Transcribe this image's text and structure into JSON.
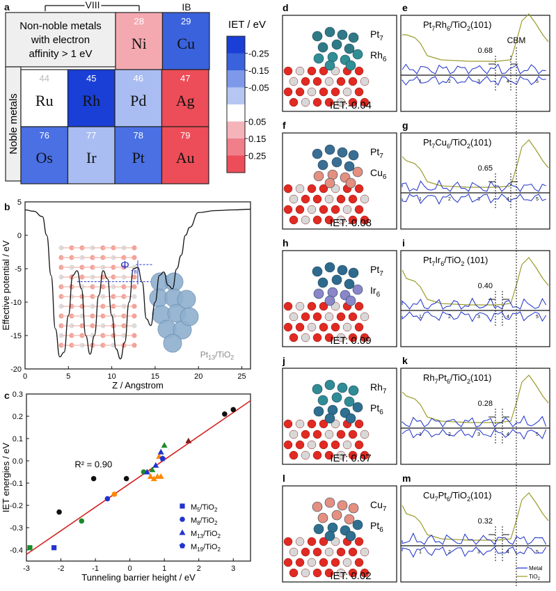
{
  "panel_letters": {
    "a": "a",
    "b": "b",
    "c": "c",
    "d": "d",
    "e": "e",
    "f": "f",
    "g": "g",
    "h": "h",
    "i": "i",
    "j": "j",
    "k": "k",
    "l": "l",
    "m": "m"
  },
  "panel_a": {
    "group_viii": "VIII",
    "group_ib": "IB",
    "nonnoble_text": [
      "Non-noble metals",
      "with electron",
      "affinity > 1 eV"
    ],
    "noble_label": "Noble metals",
    "cells": [
      {
        "num": "28",
        "sym": "Ni",
        "color": "#f4a9b1",
        "numcolor": "#ffffff"
      },
      {
        "num": "29",
        "sym": "Cu",
        "color": "#3a62dd",
        "numcolor": "#ffffff"
      },
      {
        "num": "44",
        "sym": "Ru",
        "color": "#ffffff",
        "numcolor": "#bbbbbb"
      },
      {
        "num": "45",
        "sym": "Rh",
        "color": "#1a3fd6",
        "numcolor": "#ffffff"
      },
      {
        "num": "46",
        "sym": "Pd",
        "color": "#a9bdf2",
        "numcolor": "#ffffff"
      },
      {
        "num": "47",
        "sym": "Ag",
        "color": "#ec4d58",
        "numcolor": "#ffffff"
      },
      {
        "num": "76",
        "sym": "Os",
        "color": "#4a70e3",
        "numcolor": "#ffffff"
      },
      {
        "num": "77",
        "sym": "Ir",
        "color": "#a9bdf2",
        "numcolor": "#ffffff"
      },
      {
        "num": "78",
        "sym": "Pt",
        "color": "#4a70e3",
        "numcolor": "#ffffff"
      },
      {
        "num": "79",
        "sym": "Au",
        "color": "#ec4d58",
        "numcolor": "#ffffff"
      }
    ],
    "colorbar": {
      "title": "IET / eV",
      "ticks": [
        "-0.25",
        "-0.15",
        "-0.05",
        "0.05",
        "0.15",
        "0.25"
      ],
      "colors": [
        "#1a3fd6",
        "#3a62dd",
        "#7e99ea",
        "#b6c6f3",
        "#ffffff",
        "#f5b3ba",
        "#f17f89",
        "#ec4d58"
      ]
    }
  },
  "chart_data": [
    {
      "type": "line",
      "panel": "b",
      "xlabel": "Z / Angstrom",
      "ylabel": "Effective potential / eV",
      "xlim": [
        0,
        26
      ],
      "ylim": [
        -20,
        5
      ],
      "xticks": [
        "0",
        "5",
        "10",
        "15",
        "20",
        "25"
      ],
      "yticks": [
        "5",
        "0",
        "-5",
        "-10",
        "-15",
        "-20"
      ],
      "x": [
        0,
        1,
        2,
        2.5,
        3,
        3.5,
        4,
        4.5,
        5,
        5.5,
        6,
        6.5,
        7,
        7.5,
        8,
        8.5,
        9,
        9.5,
        10,
        10.5,
        11,
        11.5,
        12,
        12.5,
        13,
        13.5,
        14,
        14.5,
        15,
        15.5,
        16,
        16.5,
        17,
        17.5,
        18,
        18.5,
        19,
        20,
        22,
        24,
        26
      ],
      "y": [
        3.8,
        3.6,
        2.8,
        0,
        -6,
        -14,
        -18.2,
        -17.5,
        -12,
        -6,
        -5.3,
        -8,
        -15,
        -17.8,
        -15,
        -9,
        -5.3,
        -6.5,
        -12,
        -17,
        -18.5,
        -16,
        -10,
        -5,
        -4.8,
        -7,
        -12.5,
        -13.5,
        -10,
        -6,
        -5.5,
        -7.5,
        -8,
        -5,
        -3,
        0,
        1.2,
        3.4,
        3.7,
        3.8,
        3.9
      ],
      "annotations": [
        "Φ",
        "TB",
        "Pt13/TiO2"
      ]
    },
    {
      "type": "scatter",
      "panel": "c",
      "xlabel": "Tunneling barrier height / eV",
      "ylabel": "IET energies / eV",
      "xlim": [
        -3,
        3.5
      ],
      "ylim": [
        -0.45,
        0.3
      ],
      "xticks": [
        "-3",
        "-2",
        "-1",
        "0",
        "1",
        "2",
        "3"
      ],
      "yticks": [
        "0.3",
        "0.2",
        "0.1",
        "0.0",
        "-0.1",
        "-0.2",
        "-0.3",
        "-0.4"
      ],
      "r2": "R² = 0.90",
      "fit": {
        "x": [
          -3,
          3.5
        ],
        "y": [
          -0.42,
          0.27
        ]
      },
      "legend": [
        "M5/TiO2",
        "M8/TiO2",
        "M13/TiO2",
        "M19/TiO2"
      ],
      "points": [
        {
          "x": -2.9,
          "y": -0.39,
          "shape": "square",
          "color": "#1a8a2a"
        },
        {
          "x": -2.2,
          "y": -0.39,
          "shape": "square",
          "color": "#2233cc"
        },
        {
          "x": -2.05,
          "y": -0.23,
          "shape": "circle",
          "color": "#111111"
        },
        {
          "x": -1.4,
          "y": -0.27,
          "shape": "circle",
          "color": "#1a8a2a"
        },
        {
          "x": -1.05,
          "y": -0.08,
          "shape": "circle",
          "color": "#111111"
        },
        {
          "x": -0.65,
          "y": -0.17,
          "shape": "circle",
          "color": "#2233cc"
        },
        {
          "x": -0.45,
          "y": -0.15,
          "shape": "circle",
          "color": "#ff8800"
        },
        {
          "x": -0.1,
          "y": -0.08,
          "shape": "circle",
          "color": "#111111"
        },
        {
          "x": 0.4,
          "y": -0.05,
          "shape": "circle",
          "color": "#1a8a2a"
        },
        {
          "x": 0.5,
          "y": -0.05,
          "shape": "triangle",
          "color": "#2233cc"
        },
        {
          "x": 0.6,
          "y": -0.07,
          "shape": "triangle",
          "color": "#ff8800"
        },
        {
          "x": 0.65,
          "y": -0.04,
          "shape": "triangle",
          "color": "#1a8a2a"
        },
        {
          "x": 0.7,
          "y": -0.08,
          "shape": "triangle",
          "color": "#ff8800"
        },
        {
          "x": 0.75,
          "y": -0.02,
          "shape": "triangle",
          "color": "#2233cc"
        },
        {
          "x": 0.8,
          "y": -0.07,
          "shape": "triangle",
          "color": "#ff8800"
        },
        {
          "x": 0.85,
          "y": 0.02,
          "shape": "triangle",
          "color": "#ff8800"
        },
        {
          "x": 0.9,
          "y": -0.07,
          "shape": "triangle",
          "color": "#ff8800"
        },
        {
          "x": 0.9,
          "y": 0.04,
          "shape": "triangle",
          "color": "#2233cc"
        },
        {
          "x": 0.95,
          "y": 0.01,
          "shape": "pentagon",
          "color": "#2233cc"
        },
        {
          "x": 1.0,
          "y": 0.07,
          "shape": "triangle",
          "color": "#1a8a2a"
        },
        {
          "x": 1.7,
          "y": 0.09,
          "shape": "triangle",
          "color": "#8b1a1a"
        },
        {
          "x": 2.75,
          "y": 0.21,
          "shape": "circle",
          "color": "#111111"
        },
        {
          "x": 3.0,
          "y": 0.23,
          "shape": "circle",
          "color": "#111111"
        }
      ]
    }
  ],
  "structures": [
    {
      "letter": "d",
      "top": "Pt",
      "top_sub": "7",
      "bottom": "Rh",
      "bottom_sub": "6",
      "iet": "IET:-0.04",
      "cluster_top": "#2f7a86",
      "cluster_bottom": "#2f8f94"
    },
    {
      "letter": "f",
      "top": "Pt",
      "top_sub": "7",
      "bottom": "Cu",
      "bottom_sub": "6",
      "iet": "IET:-0.08",
      "cluster_top": "#3a6e93",
      "cluster_bottom": "#e48f7f"
    },
    {
      "letter": "h",
      "top": "Pt",
      "top_sub": "7",
      "bottom": "Ir",
      "bottom_sub": "6",
      "iet": "IET: 0.09",
      "cluster_top": "#2e6a8d",
      "cluster_bottom": "#8a86c9"
    },
    {
      "letter": "j",
      "top": "Rh",
      "top_sub": "7",
      "bottom": "Pt",
      "bottom_sub": "6",
      "iet": "IET: 0.07",
      "cluster_top": "#2f8c95",
      "cluster_bottom": "#2f6f8f"
    },
    {
      "letter": "l",
      "top": "Cu",
      "top_sub": "7",
      "bottom": "Pt",
      "bottom_sub": "6",
      "iet": "IET: 0.02",
      "cluster_top": "#e48f7f",
      "cluster_bottom": "#2f6f8f"
    }
  ],
  "dos_panels": [
    {
      "letter": "e",
      "title": "Pt",
      "t1": "7",
      "mid": "Rh",
      "t2": "6",
      "rest": "/TiO",
      "t3": "2",
      "tail": "(101)",
      "gap": "0.68",
      "cbm": "CBM"
    },
    {
      "letter": "g",
      "title": "Pt",
      "t1": "7",
      "mid": "Cu",
      "t2": "6",
      "rest": "/TiO",
      "t3": "2",
      "tail": "(101)",
      "gap": "0.65",
      "cbm": ""
    },
    {
      "letter": "i",
      "title": "Pt",
      "t1": "7",
      "mid": "Ir",
      "t2": "6",
      "rest": "/TiO",
      "t3": "2",
      "tail": " (101)",
      "gap": "0.40",
      "cbm": ""
    },
    {
      "letter": "k",
      "title": "Rh",
      "t1": "7",
      "mid": "Pt",
      "t2": "6",
      "rest": "/TiO",
      "t3": "2",
      "tail": "(101)",
      "gap": "0.28",
      "cbm": ""
    },
    {
      "letter": "m",
      "title": "Cu",
      "t1": "7",
      "mid": "Pt",
      "t2": "6",
      "rest": "/TiO",
      "t3": "2",
      "tail": "(101)",
      "gap": "0.32",
      "cbm": ""
    }
  ],
  "dos_axis_ticks": [
    "1",
    "2",
    "3",
    "4",
    "5"
  ],
  "dos_legend": {
    "metal": "Metal",
    "tio2": "TiO2",
    "metal_color": "#1a2fc8",
    "tio2_color": "#9a9a2a"
  }
}
